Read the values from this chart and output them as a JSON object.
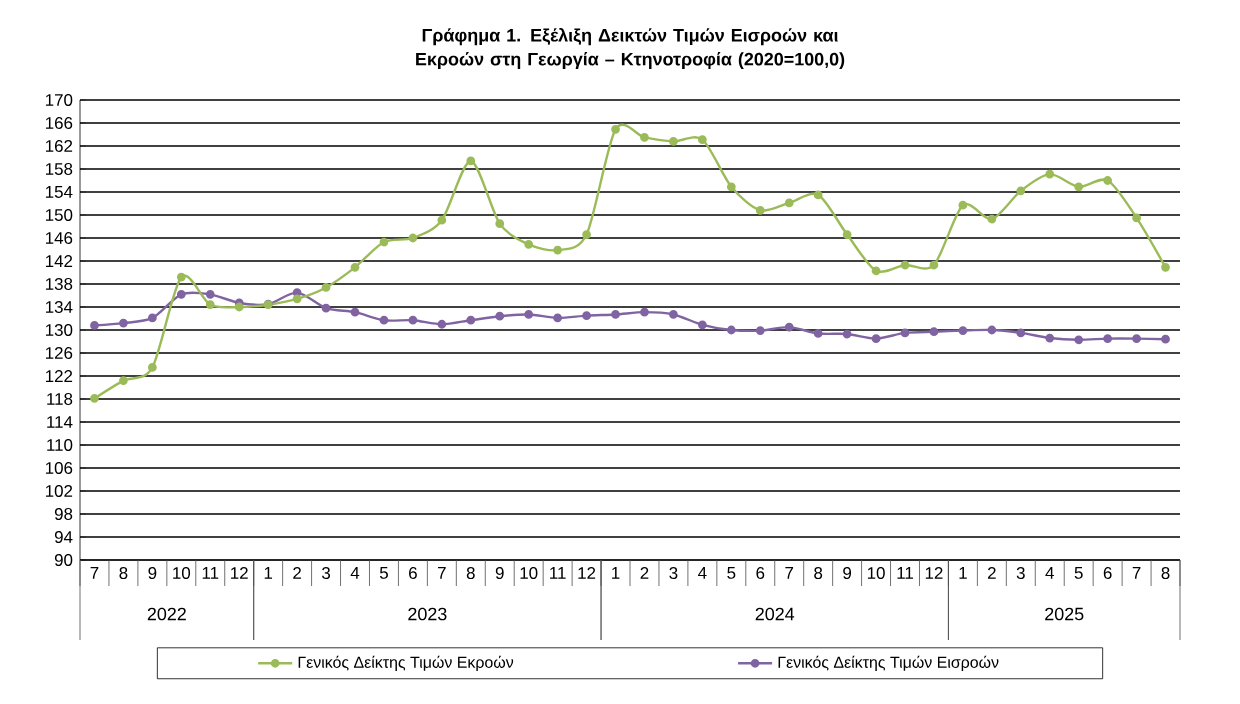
{
  "chart_data": {
    "type": "line",
    "title": "Γράφημα 1. Εξέλιξη Δεικτών Τιμών Εισροών και Εκροών στη Γεωργία – Κτηνοτροφία (2020=100,0)",
    "categories": [
      "7",
      "8",
      "9",
      "10",
      "11",
      "12",
      "1",
      "2",
      "3",
      "4",
      "5",
      "6",
      "7",
      "8",
      "9",
      "10",
      "11",
      "12",
      "1",
      "2",
      "3",
      "4",
      "5",
      "6",
      "7",
      "8",
      "9",
      "10",
      "11",
      "12",
      "1",
      "2",
      "3",
      "4",
      "5",
      "6",
      "7",
      "8"
    ],
    "annotations": [
      "2022",
      "2023",
      "2024",
      "2025"
    ],
    "series": [
      {
        "name": "Γενικός Δείκτης Τιμών Εκροών",
        "color": "#9bbb59",
        "values": [
          118.1,
          121.2,
          123.5,
          139.2,
          134.4,
          134.0,
          134.4,
          135.4,
          137.4,
          140.9,
          145.3,
          146.0,
          149.1,
          159.4,
          148.5,
          144.9,
          143.9,
          146.6,
          164.9,
          163.5,
          162.8,
          163.1,
          154.9,
          150.8,
          152.1,
          153.5,
          146.6,
          140.3,
          141.3,
          141.3,
          151.7,
          149.3,
          154.2,
          157.1,
          154.9,
          156.0,
          149.5,
          140.9
        ]
      },
      {
        "name": "Γενικός Δείκτης Τιμών Εισροών",
        "color": "#8064a2",
        "values": [
          130.8,
          131.2,
          132.1,
          136.2,
          136.2,
          134.7,
          134.5,
          136.5,
          133.8,
          133.1,
          131.7,
          131.7,
          131.0,
          131.7,
          132.4,
          132.7,
          132.1,
          132.5,
          132.7,
          133.1,
          132.7,
          130.9,
          130.0,
          129.9,
          130.5,
          129.4,
          129.3,
          128.5,
          129.5,
          129.7,
          129.9,
          130.0,
          129.5,
          128.6,
          128.3,
          128.5,
          128.5,
          128.4
        ]
      }
    ],
    "ylim": [
      90,
      170
    ],
    "yticks": [
      90,
      94,
      98,
      102,
      106,
      110,
      114,
      118,
      122,
      126,
      130,
      134,
      138,
      142,
      146,
      150,
      154,
      158,
      162,
      166,
      170
    ],
    "grid": "y",
    "legend": "bottom",
    "marker": "circle",
    "line_style": "solid"
  }
}
